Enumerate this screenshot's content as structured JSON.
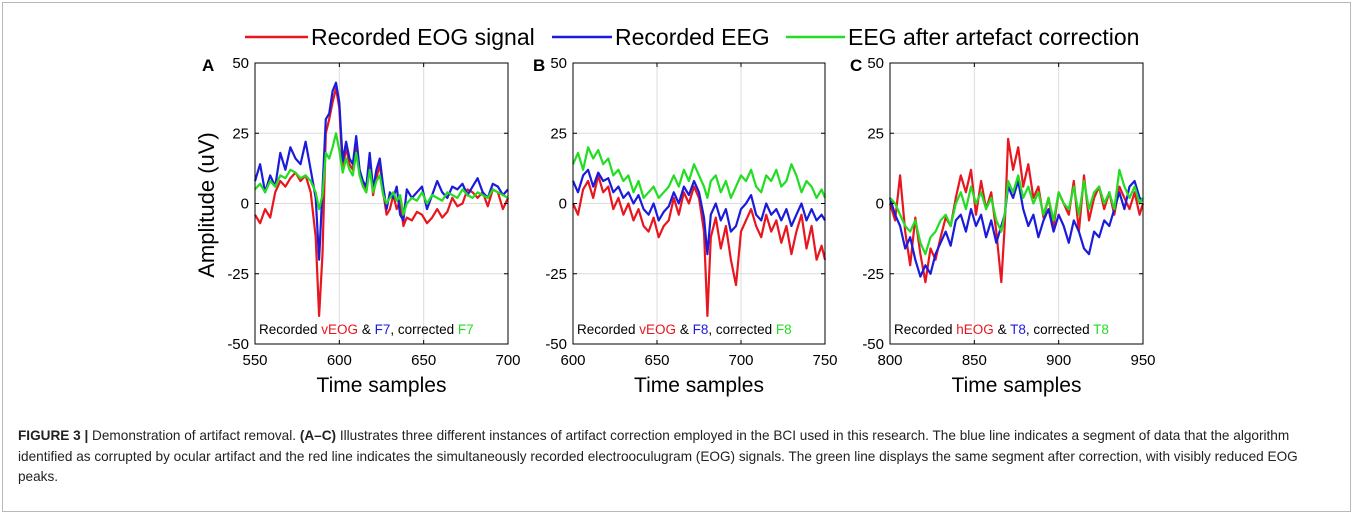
{
  "legend": [
    {
      "label": "Recorded EOG signal",
      "color": "#e8161e"
    },
    {
      "label": "Recorded EEG",
      "color": "#1b1bdc"
    },
    {
      "label": "EEG after artefact correction",
      "color": "#22dd22"
    }
  ],
  "colors": {
    "eog": "#e8161e",
    "eeg": "#1b1bdc",
    "corrected": "#22dd22"
  },
  "ylabel": "Amplitude (uV)",
  "caption": {
    "figure": "FIGURE 3 |",
    "text1": " Demonstration of artifact removal. ",
    "panels": "(A–C)",
    "text2": " Illustrates three different instances of artifact correction employed in the BCI used in this research. The blue line indicates a segment of data that the algorithm identified as corrupted by ocular artifact and the red line indicates the simultaneously recorded electrooculugram (EOG) signals. The green line displays the same segment after correction, with visibly reduced EOG peaks."
  },
  "chart_data": [
    {
      "type": "line",
      "panel": "A",
      "xlabel": "Time samples",
      "ylabel": "Amplitude (uV)",
      "xlim": [
        550,
        700
      ],
      "ylim": [
        -50,
        50
      ],
      "xticks": [
        550,
        600,
        650,
        700
      ],
      "yticks": [
        -50,
        -25,
        0,
        25,
        50
      ],
      "grid": true,
      "note": [
        "Recorded ",
        "vEOG",
        " & ",
        "F7",
        ", corrected ",
        "F7"
      ],
      "series": [
        {
          "name": "Recorded EOG signal",
          "color": "#e8161e",
          "x": [
            550,
            553,
            556,
            559,
            562,
            565,
            568,
            571,
            574,
            577,
            580,
            583,
            586,
            588,
            590,
            592,
            594,
            596,
            598,
            600,
            602,
            604,
            606,
            608,
            610,
            612,
            614,
            616,
            618,
            620,
            622,
            624,
            626,
            628,
            630,
            632,
            634,
            636,
            638,
            640,
            643,
            646,
            649,
            652,
            655,
            658,
            661,
            664,
            667,
            670,
            673,
            676,
            679,
            682,
            685,
            688,
            691,
            694,
            697,
            700
          ],
          "y": [
            -4,
            -7,
            -2,
            -5,
            4,
            8,
            6,
            9,
            11,
            8,
            10,
            4,
            -12,
            -40,
            -18,
            25,
            30,
            36,
            41,
            34,
            12,
            20,
            14,
            12,
            22,
            10,
            7,
            4,
            15,
            3,
            9,
            14,
            4,
            -4,
            -2,
            3,
            -2,
            1,
            -8,
            -5,
            -6,
            -3,
            -4,
            -7,
            -5,
            -2,
            -5,
            -3,
            2,
            -1,
            0,
            5,
            4,
            2,
            4,
            -1,
            5,
            4,
            -2,
            2
          ]
        },
        {
          "name": "Recorded EEG",
          "color": "#1b1bdc",
          "x": [
            550,
            553,
            556,
            559,
            562,
            565,
            568,
            571,
            574,
            577,
            580,
            583,
            586,
            588,
            590,
            592,
            594,
            596,
            598,
            600,
            602,
            604,
            606,
            608,
            610,
            612,
            614,
            616,
            618,
            620,
            622,
            624,
            626,
            628,
            630,
            632,
            634,
            636,
            638,
            640,
            643,
            646,
            649,
            652,
            655,
            658,
            661,
            664,
            667,
            670,
            673,
            676,
            679,
            682,
            685,
            688,
            691,
            694,
            697,
            700
          ],
          "y": [
            8,
            14,
            4,
            10,
            6,
            18,
            12,
            20,
            16,
            14,
            22,
            12,
            2,
            -20,
            5,
            30,
            32,
            40,
            43,
            36,
            15,
            22,
            16,
            14,
            24,
            12,
            8,
            6,
            18,
            5,
            12,
            16,
            6,
            -2,
            4,
            2,
            6,
            -4,
            -6,
            5,
            2,
            4,
            6,
            -2,
            3,
            8,
            4,
            2,
            6,
            5,
            7,
            3,
            6,
            9,
            4,
            2,
            7,
            6,
            3,
            5
          ]
        },
        {
          "name": "EEG after artefact correction",
          "color": "#22dd22",
          "x": [
            550,
            553,
            556,
            559,
            562,
            565,
            568,
            571,
            574,
            577,
            580,
            583,
            586,
            588,
            590,
            592,
            594,
            596,
            598,
            600,
            602,
            604,
            606,
            608,
            610,
            612,
            614,
            616,
            618,
            620,
            622,
            624,
            626,
            628,
            630,
            632,
            634,
            636,
            638,
            640,
            643,
            646,
            649,
            652,
            655,
            658,
            661,
            664,
            667,
            670,
            673,
            676,
            679,
            682,
            685,
            688,
            691,
            694,
            697,
            700
          ],
          "y": [
            5,
            7,
            4,
            8,
            6,
            10,
            9,
            12,
            11,
            9,
            10,
            8,
            4,
            -2,
            3,
            18,
            16,
            20,
            25,
            19,
            11,
            16,
            12,
            10,
            18,
            10,
            6,
            4,
            12,
            4,
            8,
            10,
            3,
            0,
            2,
            4,
            1,
            3,
            -4,
            0,
            2,
            1,
            4,
            0,
            3,
            2,
            1,
            4,
            3,
            2,
            5,
            3,
            2,
            4,
            3,
            2,
            5,
            4,
            3,
            2
          ]
        }
      ]
    },
    {
      "type": "line",
      "panel": "B",
      "xlabel": "Time samples",
      "xlim": [
        600,
        750
      ],
      "ylim": [
        -50,
        50
      ],
      "xticks": [
        600,
        650,
        700,
        750
      ],
      "yticks": [
        -50,
        -25,
        0,
        25,
        50
      ],
      "grid": true,
      "note": [
        "Recorded ",
        "vEOG",
        " & ",
        "F8",
        ", corrected ",
        "F8"
      ],
      "series": [
        {
          "name": "Recorded EOG signal",
          "color": "#e8161e",
          "x": [
            600,
            603,
            606,
            609,
            612,
            615,
            618,
            621,
            624,
            627,
            630,
            633,
            636,
            639,
            642,
            645,
            648,
            651,
            654,
            657,
            660,
            663,
            666,
            669,
            672,
            675,
            678,
            680,
            682,
            685,
            688,
            691,
            694,
            697,
            700,
            703,
            706,
            709,
            712,
            715,
            718,
            721,
            724,
            727,
            730,
            733,
            736,
            739,
            742,
            745,
            748,
            750
          ],
          "y": [
            0,
            -4,
            5,
            8,
            2,
            10,
            4,
            6,
            -2,
            2,
            -4,
            0,
            -6,
            -2,
            -8,
            -10,
            -5,
            -12,
            -8,
            -6,
            2,
            -4,
            4,
            0,
            6,
            2,
            -10,
            -40,
            -12,
            -5,
            -16,
            -8,
            -20,
            -29,
            -10,
            -6,
            -2,
            -8,
            -12,
            -4,
            -10,
            -6,
            -14,
            -8,
            -18,
            -10,
            -4,
            -16,
            -8,
            -20,
            -15,
            -20
          ]
        },
        {
          "name": "Recorded EEG",
          "color": "#1b1bdc",
          "x": [
            600,
            603,
            606,
            609,
            612,
            615,
            618,
            621,
            624,
            627,
            630,
            633,
            636,
            639,
            642,
            645,
            648,
            651,
            654,
            657,
            660,
            663,
            666,
            669,
            672,
            675,
            678,
            680,
            682,
            685,
            688,
            691,
            694,
            697,
            700,
            703,
            706,
            709,
            712,
            715,
            718,
            721,
            724,
            727,
            730,
            733,
            736,
            739,
            742,
            745,
            748,
            750
          ],
          "y": [
            8,
            4,
            10,
            12,
            6,
            11,
            8,
            9,
            4,
            6,
            2,
            4,
            0,
            3,
            -2,
            -4,
            0,
            -6,
            -3,
            -1,
            4,
            0,
            6,
            3,
            8,
            4,
            -5,
            -18,
            -4,
            0,
            -6,
            -2,
            -10,
            -8,
            -2,
            0,
            3,
            -4,
            -6,
            0,
            -4,
            -2,
            -6,
            -2,
            -8,
            -4,
            0,
            -6,
            -2,
            -6,
            -4,
            -6
          ]
        },
        {
          "name": "EEG after artefact correction",
          "color": "#22dd22",
          "x": [
            600,
            603,
            606,
            609,
            612,
            615,
            618,
            621,
            624,
            627,
            630,
            633,
            636,
            639,
            642,
            645,
            648,
            651,
            654,
            657,
            660,
            663,
            666,
            669,
            672,
            675,
            678,
            680,
            682,
            685,
            688,
            691,
            694,
            697,
            700,
            703,
            706,
            709,
            712,
            715,
            718,
            721,
            724,
            727,
            730,
            733,
            736,
            739,
            742,
            745,
            748,
            750
          ],
          "y": [
            14,
            18,
            12,
            20,
            16,
            19,
            14,
            16,
            10,
            12,
            8,
            10,
            4,
            8,
            2,
            4,
            6,
            2,
            4,
            6,
            10,
            6,
            12,
            8,
            14,
            10,
            6,
            2,
            8,
            10,
            4,
            8,
            2,
            6,
            10,
            8,
            12,
            6,
            4,
            10,
            8,
            12,
            6,
            8,
            14,
            10,
            4,
            8,
            6,
            2,
            5,
            2
          ]
        }
      ]
    },
    {
      "type": "line",
      "panel": "C",
      "xlabel": "Time samples",
      "xlim": [
        800,
        950
      ],
      "ylim": [
        -50,
        50
      ],
      "xticks": [
        800,
        850,
        900,
        950
      ],
      "yticks": [
        -50,
        -25,
        0,
        25,
        50
      ],
      "grid": true,
      "note": [
        "Recorded ",
        "hEOG",
        " & ",
        "T8",
        ", corrected ",
        "T8"
      ],
      "series": [
        {
          "name": "Recorded EOG signal",
          "color": "#e8161e",
          "x": [
            800,
            803,
            806,
            809,
            812,
            815,
            818,
            821,
            824,
            827,
            830,
            833,
            836,
            839,
            842,
            845,
            848,
            851,
            854,
            857,
            860,
            863,
            866,
            868,
            870,
            873,
            876,
            879,
            882,
            885,
            888,
            891,
            894,
            897,
            900,
            903,
            906,
            909,
            912,
            915,
            918,
            921,
            924,
            927,
            930,
            933,
            936,
            939,
            942,
            945,
            948,
            950
          ],
          "y": [
            0,
            -6,
            10,
            -10,
            -22,
            -5,
            -18,
            -28,
            -16,
            -20,
            -12,
            -5,
            -8,
            2,
            10,
            4,
            12,
            -4,
            8,
            -2,
            4,
            -10,
            -28,
            -8,
            23,
            12,
            20,
            6,
            14,
            2,
            6,
            -5,
            2,
            -8,
            4,
            0,
            -4,
            8,
            -10,
            10,
            -6,
            2,
            6,
            -2,
            4,
            -4,
            6,
            2,
            -2,
            4,
            -4,
            0
          ]
        },
        {
          "name": "Recorded EEG",
          "color": "#1b1bdc",
          "x": [
            800,
            803,
            806,
            809,
            812,
            815,
            818,
            821,
            824,
            827,
            830,
            833,
            836,
            839,
            842,
            845,
            848,
            851,
            854,
            857,
            860,
            863,
            866,
            868,
            870,
            873,
            876,
            879,
            882,
            885,
            888,
            891,
            894,
            897,
            900,
            903,
            906,
            909,
            912,
            915,
            918,
            921,
            924,
            927,
            930,
            933,
            936,
            939,
            942,
            945,
            948,
            950
          ],
          "y": [
            2,
            -4,
            -8,
            -16,
            -12,
            -20,
            -26,
            -22,
            -25,
            -18,
            -14,
            -10,
            -15,
            -6,
            -4,
            -10,
            -2,
            -8,
            -4,
            -12,
            -6,
            -14,
            -8,
            -4,
            6,
            2,
            8,
            -2,
            -8,
            -4,
            -12,
            -6,
            -2,
            -10,
            -4,
            -8,
            -14,
            -6,
            -10,
            -16,
            -18,
            -10,
            -12,
            -6,
            -8,
            -2,
            4,
            -2,
            6,
            8,
            2,
            1
          ]
        },
        {
          "name": "EEG after artefact correction",
          "color": "#22dd22",
          "x": [
            800,
            803,
            806,
            809,
            812,
            815,
            818,
            821,
            824,
            827,
            830,
            833,
            836,
            839,
            842,
            845,
            848,
            851,
            854,
            857,
            860,
            863,
            866,
            868,
            870,
            873,
            876,
            879,
            882,
            885,
            888,
            891,
            894,
            897,
            900,
            903,
            906,
            909,
            912,
            915,
            918,
            921,
            924,
            927,
            930,
            933,
            936,
            939,
            942,
            945,
            948,
            950
          ],
          "y": [
            2,
            0,
            -4,
            -8,
            -10,
            -6,
            -14,
            -18,
            -12,
            -10,
            -6,
            -4,
            -8,
            0,
            4,
            -2,
            6,
            0,
            4,
            -2,
            2,
            -6,
            -10,
            -4,
            8,
            4,
            10,
            2,
            6,
            0,
            4,
            -4,
            2,
            -6,
            4,
            0,
            -2,
            6,
            -4,
            8,
            -2,
            4,
            6,
            0,
            4,
            -2,
            12,
            6,
            2,
            6,
            0,
            2
          ]
        }
      ]
    }
  ]
}
